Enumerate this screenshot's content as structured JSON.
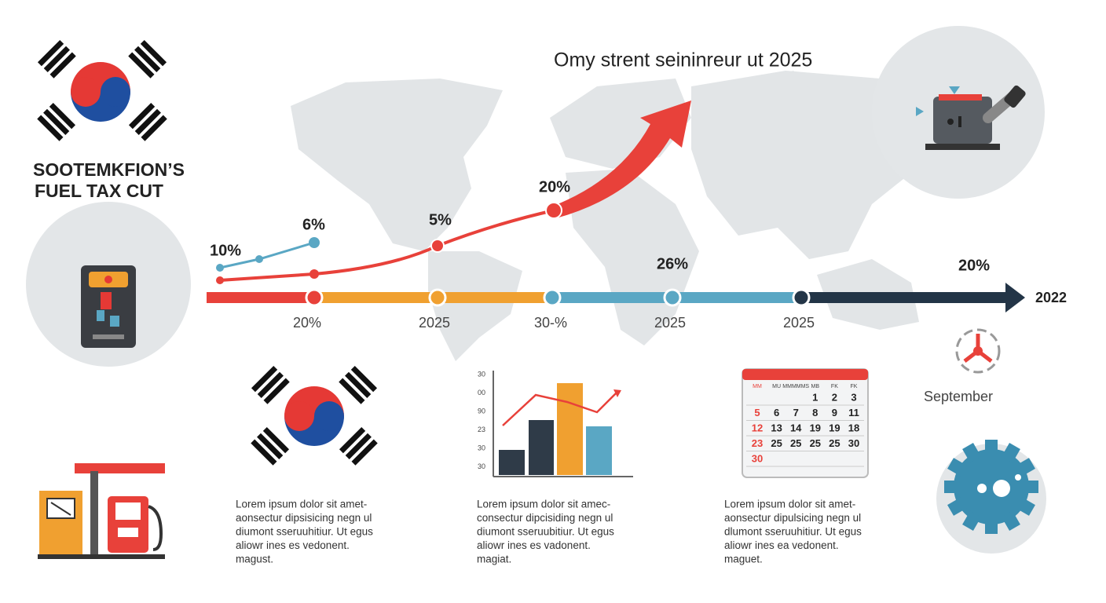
{
  "header": {
    "title": "Omy strent seininreur ut 2025",
    "heading": [
      "SOOTEMKFION’S",
      "FUEL TAX CUT"
    ]
  },
  "trend_labels": [
    "10%",
    "6%",
    "5%",
    "20%",
    "26%",
    "20%"
  ],
  "timeline": {
    "labels": [
      "20%",
      "2025",
      "30-%",
      "2025",
      "2025"
    ],
    "end_label": "2022"
  },
  "side_label": "September",
  "mini_chart": {
    "y_labels": [
      "30",
      "00",
      "90",
      "23",
      "30",
      "30"
    ]
  },
  "calendar": {
    "headers": [
      "MM",
      "MU",
      "MMMMMS",
      "MB",
      "FK",
      "FK"
    ],
    "rows": [
      [
        "1",
        "2",
        "3"
      ],
      [
        "5",
        "6",
        "7",
        "8",
        "9",
        "11"
      ],
      [
        "12",
        "13",
        "14",
        "19",
        "19",
        "18"
      ],
      [
        "23",
        "25",
        "25",
        "25",
        "25",
        "30"
      ],
      [
        "30"
      ]
    ]
  },
  "paragraphs": [
    [
      "Lorem ipsum dolor sit amet-",
      "aonsectur dipsisicing negn ul",
      "diumont sseruuhitiur. Ut egus",
      "aliowr ines es vedonent.",
      "magust."
    ],
    [
      "Lorem ipsum dolor sit amec-",
      "consectur dipcisiding negn ul",
      "diumont sseruubitiur. Ut egus",
      "aliowr ines es vadonent.",
      "magiat."
    ],
    [
      "Lorem ipsum dolor sit amet-",
      "aonsectur dipulsicing negn ul",
      "dlumont sseruuhitiur. Ut egus",
      "aliowr ines ea vedonent.",
      "maguet."
    ]
  ]
}
